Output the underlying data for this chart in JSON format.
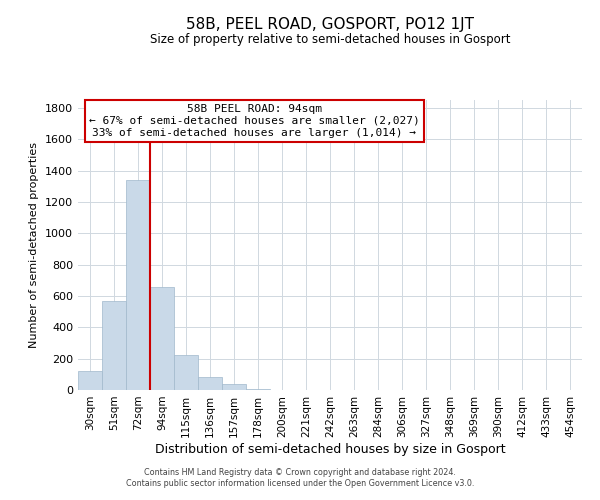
{
  "title": "58B, PEEL ROAD, GOSPORT, PO12 1JT",
  "subtitle": "Size of property relative to semi-detached houses in Gosport",
  "xlabel": "Distribution of semi-detached houses by size in Gosport",
  "ylabel": "Number of semi-detached properties",
  "bar_labels": [
    "30sqm",
    "51sqm",
    "72sqm",
    "94sqm",
    "115sqm",
    "136sqm",
    "157sqm",
    "178sqm",
    "200sqm",
    "221sqm",
    "242sqm",
    "263sqm",
    "284sqm",
    "306sqm",
    "327sqm",
    "348sqm",
    "369sqm",
    "390sqm",
    "412sqm",
    "433sqm",
    "454sqm"
  ],
  "bar_values": [
    120,
    570,
    1340,
    660,
    225,
    80,
    40,
    5,
    1,
    0,
    0,
    0,
    0,
    0,
    0,
    0,
    0,
    0,
    0,
    0,
    0
  ],
  "bar_color": "#c9d9e8",
  "bar_edge_color": "#a0b8cc",
  "property_line_index": 3,
  "property_line_color": "#cc0000",
  "ylim": [
    0,
    1850
  ],
  "yticks": [
    0,
    200,
    400,
    600,
    800,
    1000,
    1200,
    1400,
    1600,
    1800
  ],
  "annotation_title": "58B PEEL ROAD: 94sqm",
  "annotation_line1": "← 67% of semi-detached houses are smaller (2,027)",
  "annotation_line2": "33% of semi-detached houses are larger (1,014) →",
  "annotation_box_color": "#ffffff",
  "annotation_box_edge": "#cc0000",
  "footer1": "Contains HM Land Registry data © Crown copyright and database right 2024.",
  "footer2": "Contains public sector information licensed under the Open Government Licence v3.0.",
  "background_color": "#ffffff",
  "grid_color": "#d0d8e0"
}
